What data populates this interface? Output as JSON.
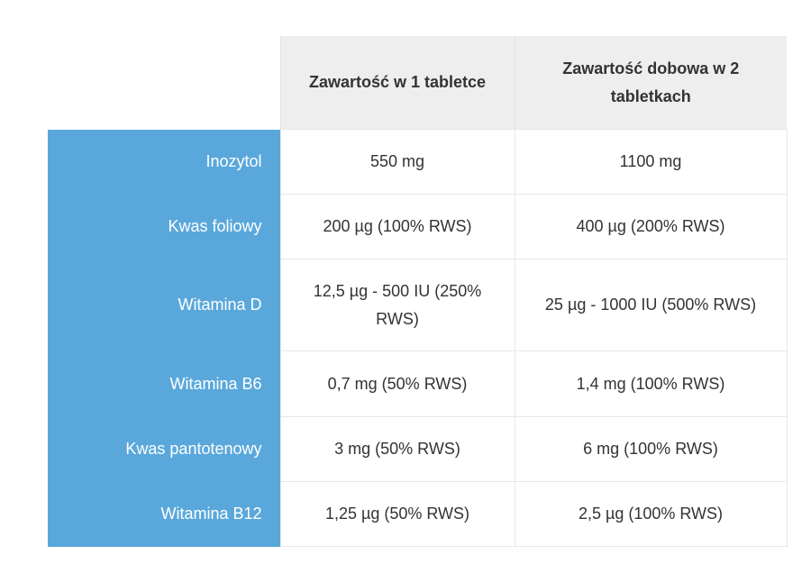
{
  "table": {
    "headers": [
      "",
      "Zawartość w 1 tabletce",
      "Zawartość dobowa w 2 tabletkach"
    ],
    "rows": [
      {
        "label": "Inozytol",
        "per_tablet": "550 mg",
        "daily": "1100 mg"
      },
      {
        "label": "Kwas foliowy",
        "per_tablet": "200 µg (100% RWS)",
        "daily": "400 µg (200% RWS)"
      },
      {
        "label": "Witamina D",
        "per_tablet": "12,5 µg - 500 IU (250% RWS)",
        "daily": "25 µg - 1000 IU (500% RWS)"
      },
      {
        "label": "Witamina B6",
        "per_tablet": "0,7 mg (50% RWS)",
        "daily": "1,4 mg (100% RWS)"
      },
      {
        "label": "Kwas pantotenowy",
        "per_tablet": "3 mg (50% RWS)",
        "daily": "6 mg (100% RWS)"
      },
      {
        "label": "Witamina B12",
        "per_tablet": "1,25 µg (50% RWS)",
        "daily": "2,5 µg (100% RWS)"
      }
    ]
  },
  "colors": {
    "row_label_bg": "#5aa8db",
    "header_bg": "#eeeeee",
    "text": "#333333"
  }
}
